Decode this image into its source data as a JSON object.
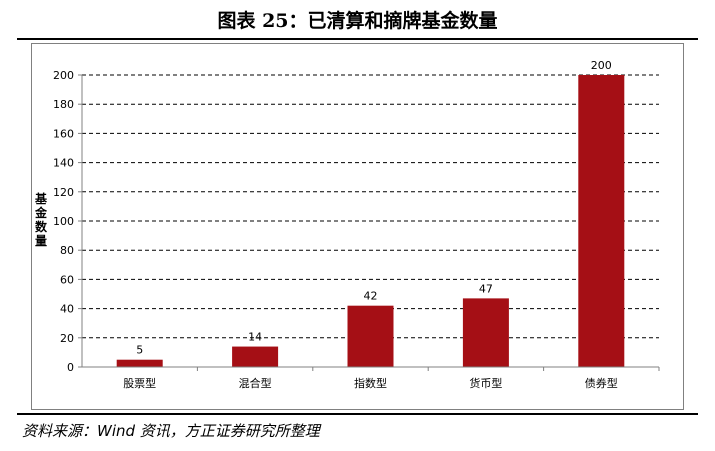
{
  "figure": {
    "title": "图表 25：已清算和摘牌基金数量",
    "source": "资料来源：Wind 资讯，方正证券研究所整理"
  },
  "chart_data": {
    "type": "bar",
    "title": "",
    "xlabel": "",
    "ylabel": "基金数量",
    "categories": [
      "股票型",
      "混合型",
      "指数型",
      "货币型",
      "债券型"
    ],
    "values": [
      5,
      14,
      42,
      47,
      200
    ],
    "data_labels": [
      "5",
      "14",
      "42",
      "47",
      "200"
    ],
    "ylim": [
      0,
      200
    ],
    "yticks": [
      "0",
      "20",
      "40",
      "60",
      "80",
      "100",
      "120",
      "140",
      "160",
      "180",
      "200"
    ],
    "grid": true,
    "legend": "none",
    "bar_color": "#a50f15"
  }
}
